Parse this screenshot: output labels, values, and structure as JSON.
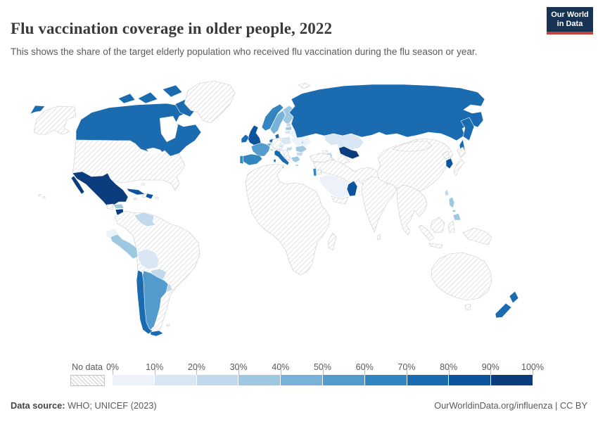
{
  "header": {
    "title": "Flu vaccination coverage in older people, 2022",
    "subtitle": "This shows the share of the target elderly population who received flu vaccination during the flu season or year.",
    "logo": {
      "line1": "Our World",
      "line2": "in Data",
      "bg_color": "#173253",
      "accent_color": "#c5423a"
    }
  },
  "legend": {
    "no_data_label": "No data",
    "tick_labels": [
      "0%",
      "10%",
      "20%",
      "30%",
      "40%",
      "50%",
      "60%",
      "70%",
      "80%",
      "90%",
      "100%"
    ],
    "colors": [
      "#edf2fa",
      "#d9e6f4",
      "#c2d8ed",
      "#9ec8e2",
      "#79b2d8",
      "#539bcc",
      "#3385bf",
      "#1a6bb0",
      "#0d549e",
      "#0b3d7e"
    ],
    "no_data_border": "#c2c2c2"
  },
  "footer": {
    "source_label": "Data source:",
    "source_text": " WHO; UNICEF (2023)",
    "right_text": "OurWorldinData.org/influenza | CC BY"
  },
  "chart_data": {
    "type": "choropleth_map",
    "title": "Flu vaccination coverage in older people, 2022",
    "unit": "share of target elderly population vaccinated (%)",
    "year": 2022,
    "legend_bins": [
      "0-10%",
      "10-20%",
      "20-30%",
      "30-40%",
      "40-50%",
      "50-60%",
      "60-70%",
      "70-80%",
      "80-90%",
      "90-100%"
    ],
    "legend_colors": [
      "#edf2fa",
      "#d9e6f4",
      "#c2d8ed",
      "#9ec8e2",
      "#79b2d8",
      "#539bcc",
      "#3385bf",
      "#1a6bb0",
      "#0d549e",
      "#0b3d7e"
    ],
    "no_data_style": "diagonal-hatch",
    "countries": [
      {
        "id": "canada",
        "name": "Canada",
        "coverage": "70-80%",
        "bin_index": 7
      },
      {
        "id": "united-states",
        "name": "United States",
        "coverage": "No data",
        "bin_index": -1
      },
      {
        "id": "greenland",
        "name": "Greenland",
        "coverage": "No data",
        "bin_index": -1
      },
      {
        "id": "mexico",
        "name": "Mexico",
        "coverage": "90-100%",
        "bin_index": 9
      },
      {
        "id": "cuba",
        "name": "Cuba",
        "coverage": "80-90%",
        "bin_index": 8
      },
      {
        "id": "haiti",
        "name": "Haiti",
        "coverage": "No data",
        "bin_index": -1
      },
      {
        "id": "dominican-republic",
        "name": "Dominican Republic",
        "coverage": "80-90%",
        "bin_index": 8
      },
      {
        "id": "guatemala",
        "name": "Guatemala",
        "coverage": "No data",
        "bin_index": -1
      },
      {
        "id": "honduras",
        "name": "Honduras",
        "coverage": "30-40%",
        "bin_index": 3
      },
      {
        "id": "nicaragua",
        "name": "Nicaragua",
        "coverage": "90-100%",
        "bin_index": 9
      },
      {
        "id": "costa-rica",
        "name": "Costa Rica",
        "coverage": "60-70%",
        "bin_index": 6
      },
      {
        "id": "panama",
        "name": "Panama",
        "coverage": "No data",
        "bin_index": -1
      },
      {
        "id": "venezuela",
        "name": "Venezuela",
        "coverage": "20-30%",
        "bin_index": 2
      },
      {
        "id": "colombia",
        "name": "Colombia",
        "coverage": "No data",
        "bin_index": -1
      },
      {
        "id": "ecuador",
        "name": "Ecuador",
        "coverage": "0-10%",
        "bin_index": 0
      },
      {
        "id": "peru",
        "name": "Peru",
        "coverage": "30-40%",
        "bin_index": 3
      },
      {
        "id": "brazil",
        "name": "Brazil",
        "coverage": "No data",
        "bin_index": -1
      },
      {
        "id": "bolivia",
        "name": "Bolivia",
        "coverage": "10-20%",
        "bin_index": 1
      },
      {
        "id": "paraguay",
        "name": "Paraguay",
        "coverage": "20-30%",
        "bin_index": 2
      },
      {
        "id": "uruguay",
        "name": "Uruguay",
        "coverage": "20-30%",
        "bin_index": 2
      },
      {
        "id": "argentina",
        "name": "Argentina",
        "coverage": "50-60%",
        "bin_index": 5
      },
      {
        "id": "chile",
        "name": "Chile",
        "coverage": "70-80%",
        "bin_index": 7
      },
      {
        "id": "iceland",
        "name": "Iceland",
        "coverage": "40-50%",
        "bin_index": 4
      },
      {
        "id": "united-kingdom",
        "name": "United Kingdom",
        "coverage": "80-90%",
        "bin_index": 8
      },
      {
        "id": "ireland",
        "name": "Ireland",
        "coverage": "70-80%",
        "bin_index": 7
      },
      {
        "id": "norway",
        "name": "Norway",
        "coverage": "60-70%",
        "bin_index": 6
      },
      {
        "id": "sweden",
        "name": "Sweden",
        "coverage": "40-50%",
        "bin_index": 4
      },
      {
        "id": "finland",
        "name": "Finland",
        "coverage": "30-40%",
        "bin_index": 3
      },
      {
        "id": "denmark",
        "name": "Denmark",
        "coverage": "70-80%",
        "bin_index": 7
      },
      {
        "id": "netherlands",
        "name": "Netherlands",
        "coverage": "70-80%",
        "bin_index": 7
      },
      {
        "id": "belgium",
        "name": "Belgium",
        "coverage": "40-50%",
        "bin_index": 4
      },
      {
        "id": "germany",
        "name": "Germany",
        "coverage": "No data",
        "bin_index": -1
      },
      {
        "id": "france",
        "name": "France",
        "coverage": "50-60%",
        "bin_index": 5
      },
      {
        "id": "spain",
        "name": "Spain",
        "coverage": "60-70%",
        "bin_index": 6
      },
      {
        "id": "portugal",
        "name": "Portugal",
        "coverage": "60-70%",
        "bin_index": 6
      },
      {
        "id": "italy",
        "name": "Italy",
        "coverage": "70-80%",
        "bin_index": 7
      },
      {
        "id": "switzerland",
        "name": "Switzerland",
        "coverage": "20-30%",
        "bin_index": 2
      },
      {
        "id": "austria",
        "name": "Austria",
        "coverage": "10-20%",
        "bin_index": 1
      },
      {
        "id": "czechia",
        "name": "Czechia",
        "coverage": "10-20%",
        "bin_index": 1
      },
      {
        "id": "poland",
        "name": "Poland",
        "coverage": "10-20%",
        "bin_index": 1
      },
      {
        "id": "estonia",
        "name": "Estonia",
        "coverage": "20-30%",
        "bin_index": 2
      },
      {
        "id": "latvia",
        "name": "Latvia",
        "coverage": "30-40%",
        "bin_index": 3
      },
      {
        "id": "lithuania",
        "name": "Lithuania",
        "coverage": "10-20%",
        "bin_index": 1
      },
      {
        "id": "belarus",
        "name": "Belarus",
        "coverage": "0-10%",
        "bin_index": 0
      },
      {
        "id": "ukraine",
        "name": "Ukraine",
        "coverage": "0-10%",
        "bin_index": 0
      },
      {
        "id": "moldova",
        "name": "Moldova",
        "coverage": "20-30%",
        "bin_index": 2
      },
      {
        "id": "hungary",
        "name": "Hungary",
        "coverage": "20-30%",
        "bin_index": 2
      },
      {
        "id": "romania",
        "name": "Romania",
        "coverage": "30-40%",
        "bin_index": 3
      },
      {
        "id": "bulgaria",
        "name": "Bulgaria",
        "coverage": "20-30%",
        "bin_index": 2
      },
      {
        "id": "greece",
        "name": "Greece",
        "coverage": "30-40%",
        "bin_index": 3
      },
      {
        "id": "albania",
        "name": "Albania",
        "coverage": "10-20%",
        "bin_index": 1
      },
      {
        "id": "russia",
        "name": "Russia",
        "coverage": "70-80%",
        "bin_index": 7
      },
      {
        "id": "kazakhstan",
        "name": "Kazakhstan",
        "coverage": "10-20%",
        "bin_index": 1
      },
      {
        "id": "uzbekistan",
        "name": "Uzbekistan",
        "coverage": "90-100%",
        "bin_index": 9
      },
      {
        "id": "turkmenistan",
        "name": "Turkmenistan",
        "coverage": "No data",
        "bin_index": -1
      },
      {
        "id": "azerbaijan",
        "name": "Azerbaijan",
        "coverage": "20-30%",
        "bin_index": 2
      },
      {
        "id": "georgia",
        "name": "Georgia",
        "coverage": "No data",
        "bin_index": -1
      },
      {
        "id": "turkey",
        "name": "Turkey",
        "coverage": "No data",
        "bin_index": -1
      },
      {
        "id": "israel",
        "name": "Israel",
        "coverage": "60-70%",
        "bin_index": 6
      },
      {
        "id": "jordan",
        "name": "Jordan",
        "coverage": "No data",
        "bin_index": -1
      },
      {
        "id": "saudi-arabia",
        "name": "Saudi Arabia",
        "coverage": "0-10%",
        "bin_index": 0
      },
      {
        "id": "yemen",
        "name": "Yemen",
        "coverage": "No data",
        "bin_index": -1
      },
      {
        "id": "oman",
        "name": "Oman",
        "coverage": "80-90%",
        "bin_index": 8
      },
      {
        "id": "africa",
        "name": "Africa (all countries)",
        "coverage": "No data",
        "bin_index": -1
      },
      {
        "id": "madagascar",
        "name": "Madagascar",
        "coverage": "No data",
        "bin_index": -1
      },
      {
        "id": "india",
        "name": "India",
        "coverage": "No data",
        "bin_index": -1
      },
      {
        "id": "sri-lanka",
        "name": "Sri Lanka",
        "coverage": "No data",
        "bin_index": -1
      },
      {
        "id": "nepal",
        "name": "Nepal",
        "coverage": "No data",
        "bin_index": -1
      },
      {
        "id": "bhutan",
        "name": "Bhutan",
        "coverage": "80-90%",
        "bin_index": 8
      },
      {
        "id": "bangladesh",
        "name": "Bangladesh",
        "coverage": "No data",
        "bin_index": -1
      },
      {
        "id": "china",
        "name": "China",
        "coverage": "No data",
        "bin_index": -1
      },
      {
        "id": "mongolia",
        "name": "Mongolia",
        "coverage": "No data",
        "bin_index": -1
      },
      {
        "id": "north-korea",
        "name": "North Korea",
        "coverage": "No data",
        "bin_index": -1
      },
      {
        "id": "south-korea",
        "name": "South Korea",
        "coverage": "80-90%",
        "bin_index": 8
      },
      {
        "id": "japan",
        "name": "Japan",
        "coverage": "No data",
        "bin_index": -1
      },
      {
        "id": "taiwan",
        "name": "Taiwan",
        "coverage": "20-30%",
        "bin_index": 2
      },
      {
        "id": "philippines",
        "name": "Philippines",
        "coverage": "30-40%",
        "bin_index": 3
      },
      {
        "id": "indonesia",
        "name": "Indonesia",
        "coverage": "No data",
        "bin_index": -1
      },
      {
        "id": "australia",
        "name": "Australia",
        "coverage": "No data",
        "bin_index": -1
      },
      {
        "id": "new-zealand",
        "name": "New Zealand",
        "coverage": "70-80%",
        "bin_index": 7
      }
    ]
  }
}
